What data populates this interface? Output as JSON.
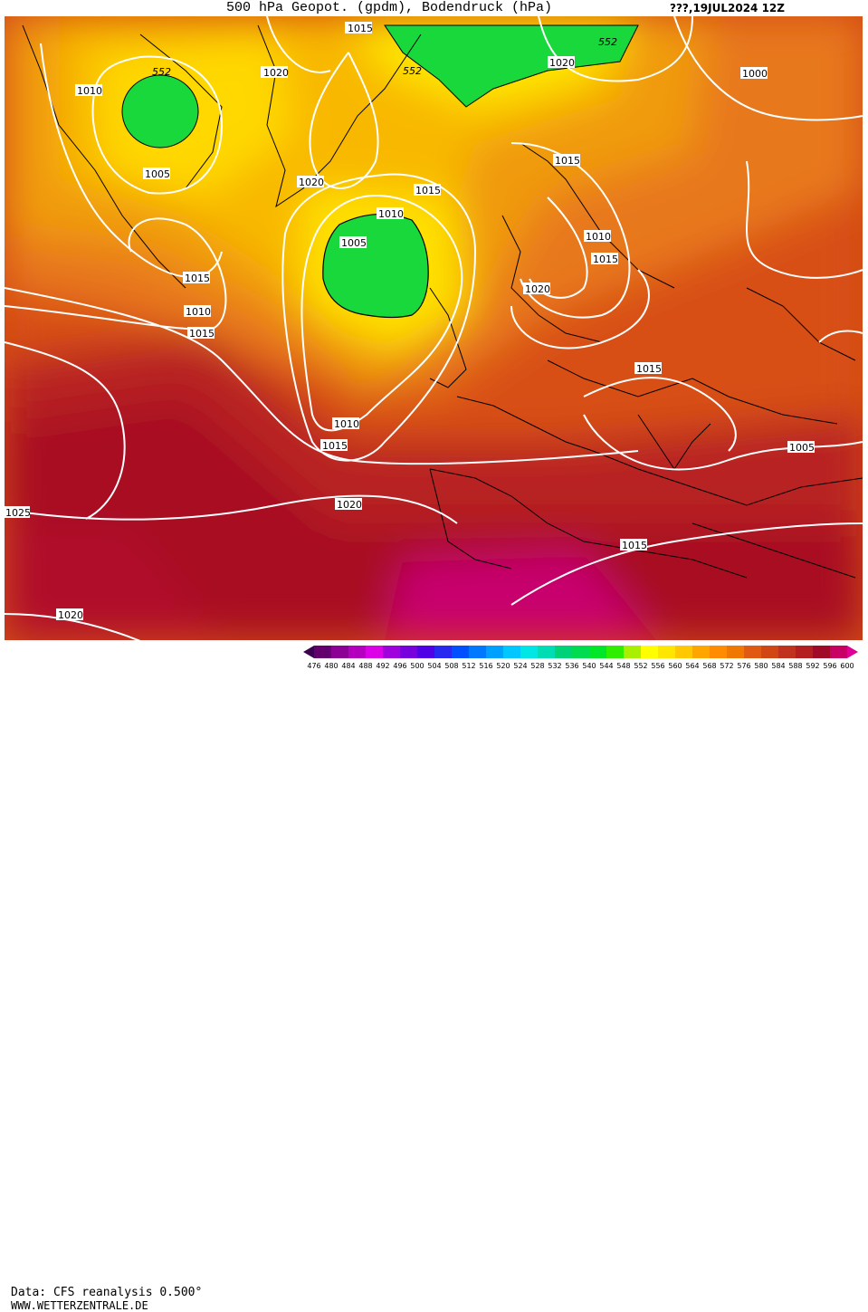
{
  "header": {
    "title": "500 hPa Geopot. (gpdm), Bodendruck (hPa)",
    "date": "???,19JUL2024 12Z"
  },
  "footer": {
    "data_source": "Data: CFS reanalysis 0.500°",
    "website": "WWW.WETTERZENTRALE.DE"
  },
  "legend": {
    "values": [
      "476",
      "480",
      "484",
      "488",
      "492",
      "496",
      "500",
      "504",
      "508",
      "512",
      "516",
      "520",
      "524",
      "528",
      "532",
      "536",
      "540",
      "544",
      "548",
      "552",
      "556",
      "560",
      "564",
      "568",
      "572",
      "576",
      "580",
      "584",
      "588",
      "592",
      "596",
      "600"
    ],
    "colors": [
      "#3c0050",
      "#64006e",
      "#8c0096",
      "#b400be",
      "#dc00e6",
      "#a000dc",
      "#7800dc",
      "#5000e6",
      "#2828f0",
      "#0050ff",
      "#0078ff",
      "#00a0ff",
      "#00c8ff",
      "#00e6e6",
      "#00dcb4",
      "#00d278",
      "#00dc50",
      "#00e628",
      "#30ee00",
      "#a8f000",
      "#ffff00",
      "#ffe600",
      "#ffc800",
      "#ffa500",
      "#ff8c00",
      "#f07800",
      "#e05a14",
      "#d24614",
      "#c0321e",
      "#b41e1e",
      "#a00a28",
      "#c80064",
      "#e00096"
    ]
  },
  "isobars": {
    "labels": [
      "1015",
      "1020",
      "1010",
      "1005",
      "1020",
      "1015",
      "1010",
      "1005",
      "1010",
      "1015",
      "1020",
      "1015",
      "1020",
      "1000",
      "1015",
      "1010",
      "1015",
      "1020",
      "1015",
      "1010",
      "1015",
      "1005",
      "1020",
      "1015",
      "1025",
      "1020"
    ]
  },
  "geopotential_labels": [
    "552",
    "552",
    "552"
  ],
  "colors": {
    "ridge_max": "#c8006e",
    "high_core": "#b4102a",
    "low_core": "#00d232",
    "isobar": "#ffffff",
    "coast": "#000000"
  }
}
